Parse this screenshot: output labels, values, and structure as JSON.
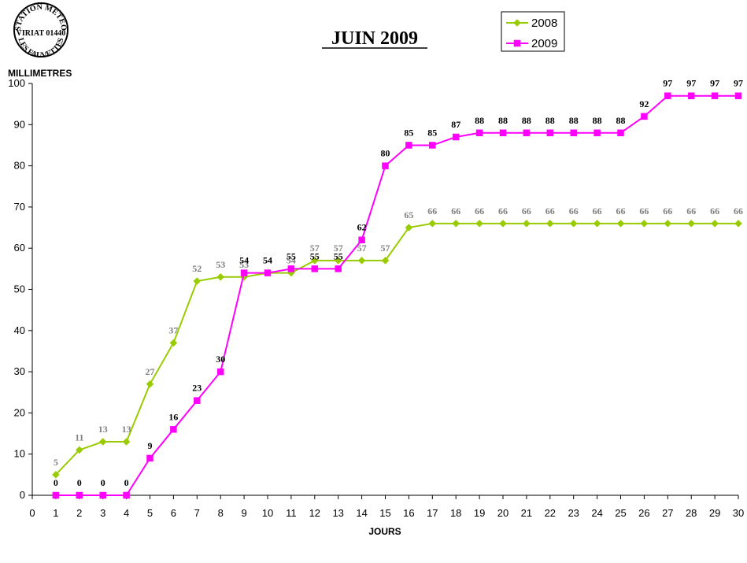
{
  "stamp": {
    "line_top": "STATION METEO",
    "line_middle": "VIRIAT 01440",
    "line_bottom": "LES FAUVETTES"
  },
  "chart_data": {
    "type": "line",
    "title": "JUIN 2009",
    "xlabel": "JOURS",
    "ylabel": "MILLIMETRES",
    "xlim": [
      0,
      30
    ],
    "ylim": [
      0,
      100
    ],
    "x_ticks": [
      0,
      1,
      2,
      3,
      4,
      5,
      6,
      7,
      8,
      9,
      10,
      11,
      12,
      13,
      14,
      15,
      16,
      17,
      18,
      19,
      20,
      21,
      22,
      23,
      24,
      25,
      26,
      27,
      28,
      29,
      30
    ],
    "y_ticks": [
      0,
      10,
      20,
      30,
      40,
      50,
      60,
      70,
      80,
      90,
      100
    ],
    "grid": false,
    "legend_position": "top-right",
    "x": [
      1,
      2,
      3,
      4,
      5,
      6,
      7,
      8,
      9,
      10,
      11,
      12,
      13,
      14,
      15,
      16,
      17,
      18,
      19,
      20,
      21,
      22,
      23,
      24,
      25,
      26,
      27,
      28,
      29,
      30
    ],
    "series": [
      {
        "name": "2008",
        "color": "#99cc00",
        "label_color": "#808080",
        "marker": "diamond",
        "values": [
          5,
          11,
          13,
          13,
          27,
          37,
          52,
          53,
          53,
          54,
          54,
          57,
          57,
          57,
          57,
          65,
          66,
          66,
          66,
          66,
          66,
          66,
          66,
          66,
          66,
          66,
          66,
          66,
          66,
          66
        ]
      },
      {
        "name": "2009",
        "color": "#ff00ff",
        "label_color": "#000000",
        "marker": "square",
        "values": [
          0,
          0,
          0,
          0,
          9,
          16,
          23,
          30,
          54,
          54,
          55,
          55,
          55,
          62,
          80,
          85,
          85,
          87,
          88,
          88,
          88,
          88,
          88,
          88,
          88,
          92,
          97,
          97,
          97,
          97
        ]
      }
    ]
  }
}
